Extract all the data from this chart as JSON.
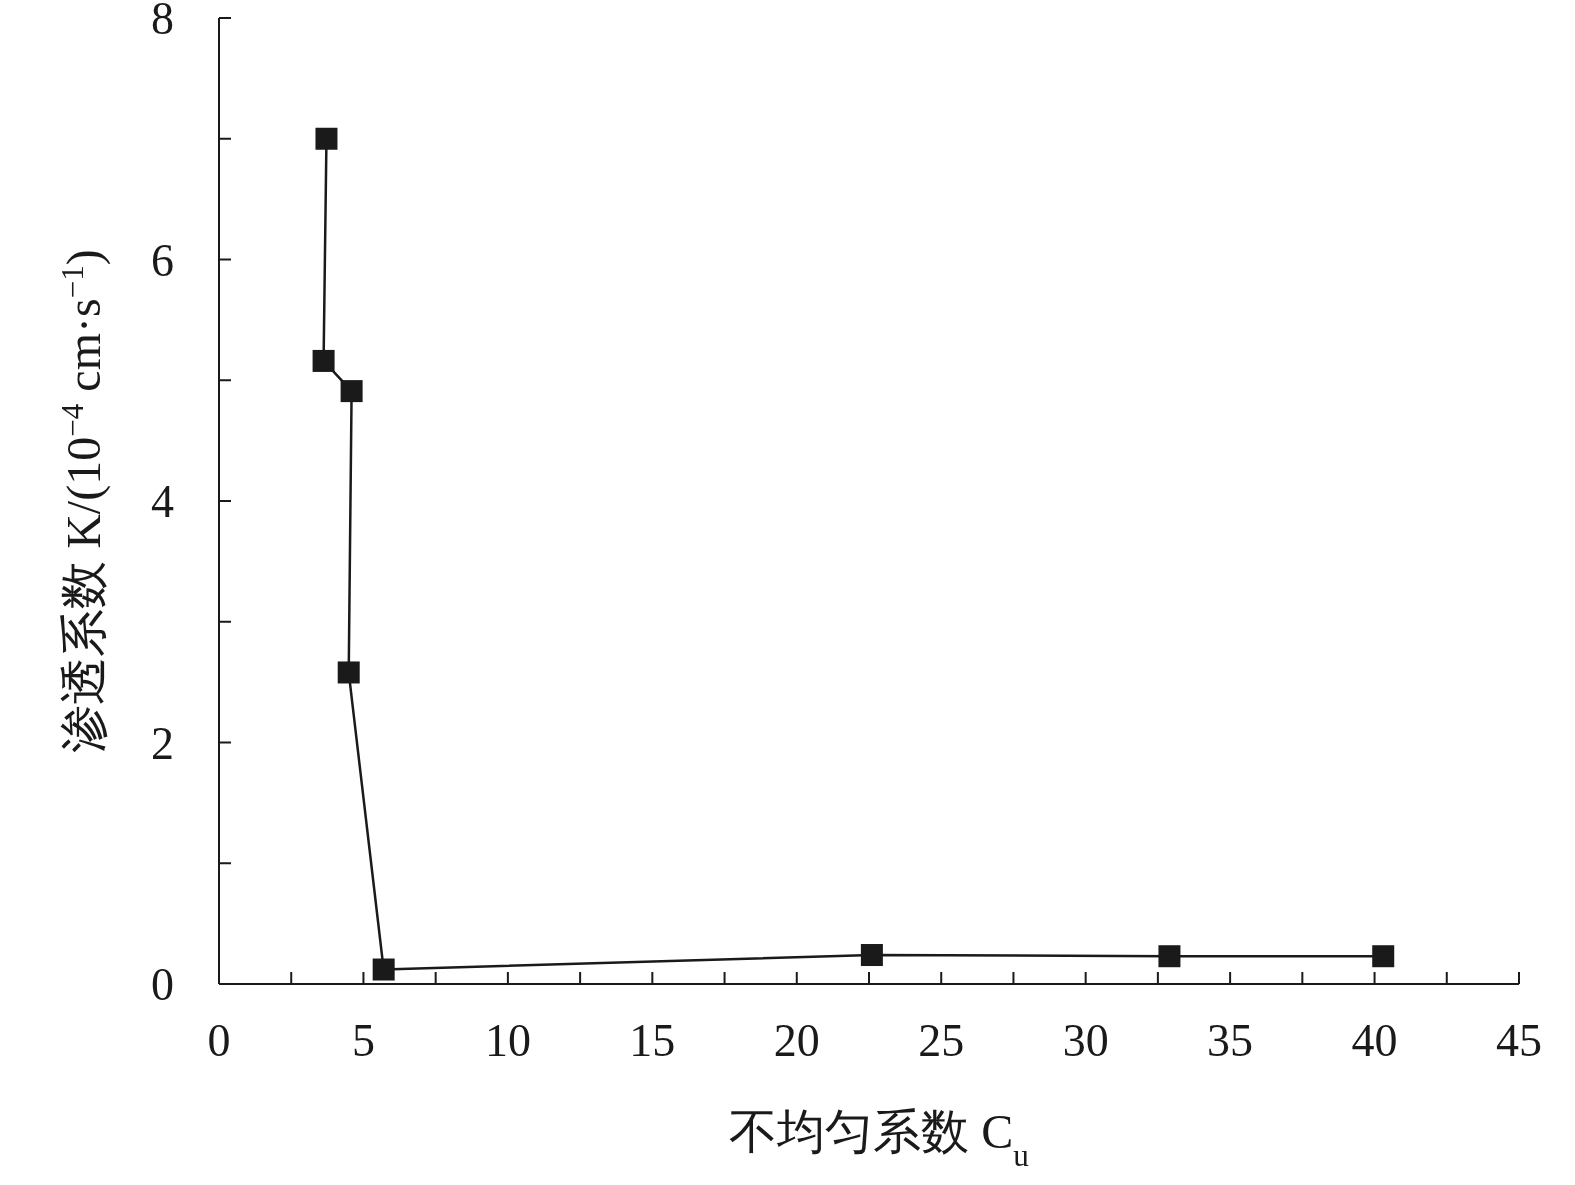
{
  "chart_data": {
    "type": "line",
    "xlabel": "不均匀系数 C$_{u}$",
    "ylabel": "渗透系数 K/(10$^{−4}$ cm·s$^{−1}$)",
    "x": [
      3.72,
      3.62,
      4.59,
      4.49,
      5.7,
      22.6,
      32.9,
      40.3
    ],
    "series": [
      {
        "color": "#1a1a1a",
        "values": [
          7.0,
          5.16,
          4.91,
          2.58,
          0.12,
          0.24,
          0.23,
          0.23
        ]
      }
    ],
    "marker": "square",
    "line_style": "solid",
    "xlim": [
      0,
      45
    ],
    "ylim": [
      0,
      8
    ],
    "xticks": [
      0,
      {
        "value": 2.5,
        "label": null
      },
      5,
      {
        "value": 7.5,
        "label": null
      },
      10,
      {
        "value": 12.5,
        "label": null
      },
      15,
      {
        "value": 17.5,
        "label": null
      },
      20,
      {
        "value": 22.5,
        "label": null
      },
      25,
      {
        "value": 27.5,
        "label": null
      },
      30,
      {
        "value": 32.5,
        "label": null
      },
      35,
      {
        "value": 37.5,
        "label": null
      },
      40,
      {
        "value": 42.5,
        "label": null
      },
      45
    ],
    "yticks": [
      0,
      {
        "value": 1,
        "label": null
      },
      2,
      {
        "value": 3,
        "label": null
      },
      4,
      {
        "value": 5,
        "label": null
      },
      6,
      {
        "value": 7,
        "label": null
      },
      8
    ]
  }
}
